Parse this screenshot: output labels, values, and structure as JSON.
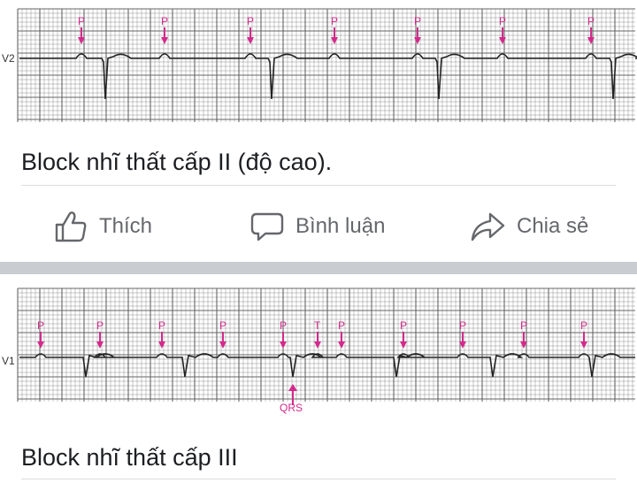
{
  "post1": {
    "lead_label": "V2",
    "marker_labels": [
      "P",
      "P",
      "P",
      "P",
      "P",
      "P",
      "P"
    ],
    "caption": "Block nhĩ thất cấp II (độ cao)."
  },
  "actions": {
    "like": "Thích",
    "comment": "Bình luận",
    "share": "Chia sẻ"
  },
  "post2": {
    "lead_label": "V1",
    "marker_labels": [
      "P",
      "P",
      "P",
      "P",
      "P",
      "T",
      "P",
      "P",
      "P",
      "P",
      "P"
    ],
    "qrs_label": "QRS",
    "caption": "Block nhĩ thất cấp III"
  },
  "colors": {
    "marker": "#d42a8c",
    "grid": "#555555",
    "text": "#1c1e21",
    "muted": "#65676b",
    "divider": "#dadde1",
    "gap": "#c9ccd1"
  }
}
